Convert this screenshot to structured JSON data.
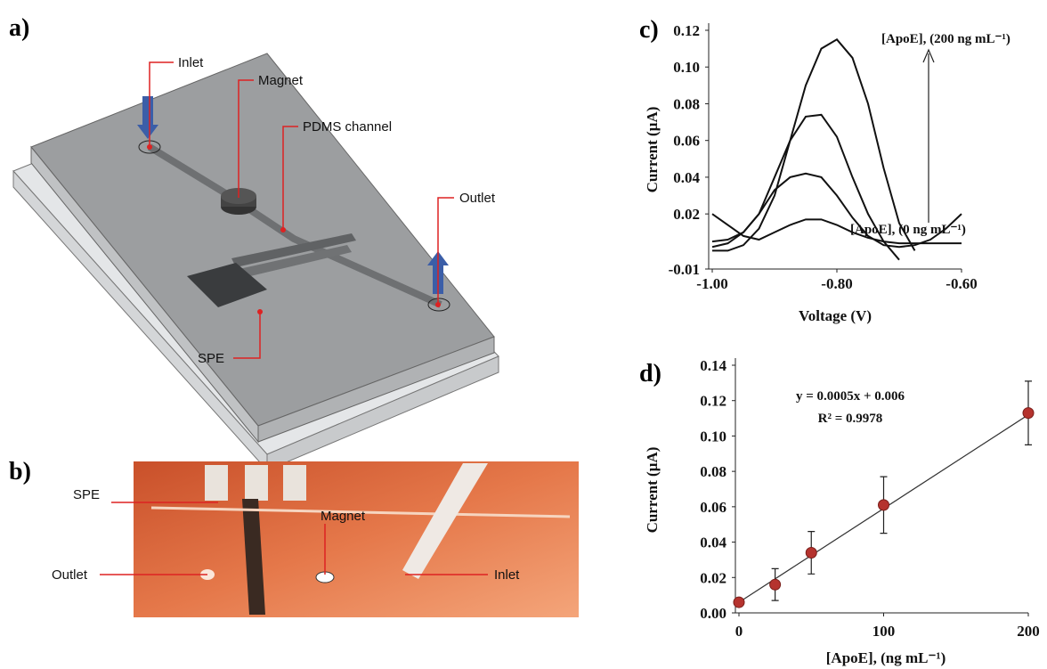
{
  "panel_labels": [
    "a)",
    "b)",
    "c)",
    "d)"
  ],
  "diagram_a": {
    "labels": [
      "Inlet",
      "Magnet",
      "PDMS channel",
      "Outlet",
      "SPE"
    ]
  },
  "photo_b": {
    "labels": [
      "SPE",
      "Magnet",
      "Outlet",
      "Inlet"
    ]
  },
  "chart_data": [
    {
      "type": "line",
      "x_label": "Voltage (V)",
      "y_label": "Current  (µA)",
      "annotations": [
        "[ApoE], (200 ng mL⁻¹)",
        "[ApoE], (0 ng mL⁻¹)"
      ],
      "x": [
        -1.0,
        -0.975,
        -0.95,
        -0.925,
        -0.9,
        -0.875,
        -0.85,
        -0.825,
        -0.8,
        -0.775,
        -0.75,
        -0.725,
        -0.7,
        -0.675,
        -0.65,
        -0.625,
        -0.6
      ],
      "series": [
        {
          "color": "#111111",
          "values": [
            0.0,
            0.0,
            0.003,
            0.012,
            0.03,
            0.06,
            0.09,
            0.11,
            0.115,
            0.105,
            0.08,
            0.045,
            0.015,
            0.0,
            null,
            null,
            null
          ]
        },
        {
          "color": "#111111",
          "values": [
            0.005,
            0.006,
            0.01,
            0.02,
            0.04,
            0.06,
            0.073,
            0.074,
            0.062,
            0.04,
            0.02,
            0.005,
            -0.005,
            null,
            null,
            null,
            null
          ]
        },
        {
          "color": "#111111",
          "values": [
            0.002,
            0.004,
            0.01,
            0.02,
            0.033,
            0.04,
            0.042,
            0.04,
            0.03,
            0.018,
            0.008,
            0.003,
            0.002,
            0.003,
            0.006,
            0.012,
            0.02
          ]
        },
        {
          "color": "#111111",
          "values": [
            0.02,
            0.014,
            0.008,
            0.006,
            0.01,
            0.014,
            0.017,
            0.017,
            0.014,
            0.01,
            0.007,
            0.005,
            0.004,
            0.004,
            0.004,
            0.004,
            0.004
          ]
        }
      ],
      "xlim": [
        -1.0,
        -0.6
      ],
      "xticks": [
        {
          "value": -1.0,
          "label": "-1.00"
        },
        {
          "value": -0.8,
          "label": "-0.80"
        },
        {
          "value": -0.6,
          "label": "-0.60"
        }
      ],
      "ylim": [
        -0.01,
        0.12
      ],
      "yticks": [
        -0.01,
        0.02,
        0.04,
        0.06,
        0.08,
        {
          "value": 0.1,
          "label": "0.10"
        },
        0.12
      ]
    },
    {
      "type": "scatter",
      "x_label": "[ApoE], (ng mL⁻¹)",
      "y_label": "Current  (µA)",
      "annotations": [
        "y = 0.0005x + 0.006",
        "R² = 0.9978"
      ],
      "x": [
        0,
        25,
        50,
        100,
        200
      ],
      "values": [
        0.006,
        0.016,
        0.034,
        0.061,
        0.113
      ],
      "errors": [
        null,
        0.009,
        0.012,
        0.016,
        0.018
      ],
      "color": "#b5332e",
      "fit": {
        "x": [
          0,
          200
        ],
        "values": [
          0.006,
          0.112
        ]
      },
      "xlim": [
        0,
        200
      ],
      "xticks": [
        0,
        100,
        200
      ],
      "ylim": [
        0,
        0.14
      ],
      "yticks": [
        {
          "value": 0,
          "label": "0.00"
        },
        0.02,
        0.04,
        0.06,
        0.08,
        {
          "value": 0.1,
          "label": "0.10"
        },
        0.12,
        0.14
      ]
    }
  ]
}
